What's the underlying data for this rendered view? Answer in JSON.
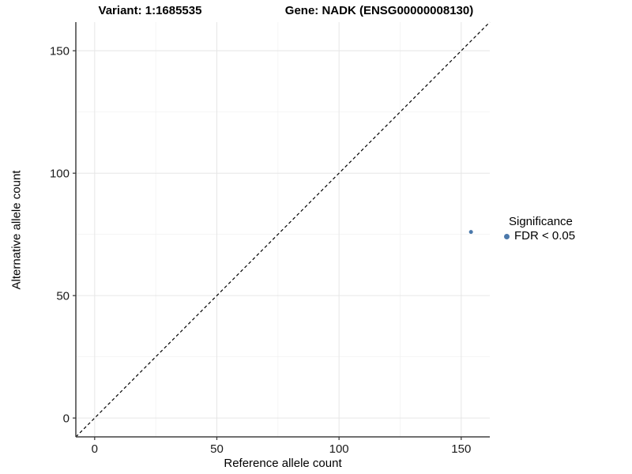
{
  "title": {
    "variant": "Variant: 1:1685535",
    "gene": "Gene: NADK (ENSG00000008130)"
  },
  "legend": {
    "title": "Significance",
    "items": [
      {
        "label": "FDR < 0.05",
        "color": "#4b79ab"
      }
    ]
  },
  "colors": {
    "point": "#4b79ab",
    "axis_line": "#404040",
    "tick_mark": "#333333",
    "grid_major": "#e6e6e6",
    "grid_minor": "#f2f2f2",
    "dashed_line": "#000000",
    "background": "#ffffff",
    "text": "#000000"
  },
  "chart_data": {
    "type": "scatter",
    "title": "Variant: 1:1685535 | Gene: NADK (ENSG00000008130)",
    "xlabel": "Reference allele count",
    "ylabel": "Alternative allele count",
    "xlim": [
      -7.7,
      161.7
    ],
    "ylim": [
      -7.7,
      161.7
    ],
    "x_ticks": [
      0,
      50,
      100,
      150
    ],
    "y_ticks": [
      0,
      50,
      100,
      150
    ],
    "x_minor_ticks": [
      25,
      75,
      125
    ],
    "y_minor_ticks": [
      25,
      75,
      125
    ],
    "grid": true,
    "legend_position": "right",
    "series": [
      {
        "name": "FDR < 0.05",
        "points": [
          {
            "x": 154,
            "y": 76
          }
        ],
        "color": "#4b79ab",
        "point_radius": 2.5
      }
    ],
    "reference_line": {
      "slope": 1,
      "intercept": 0,
      "style": "dashed",
      "color": "#000000"
    }
  }
}
